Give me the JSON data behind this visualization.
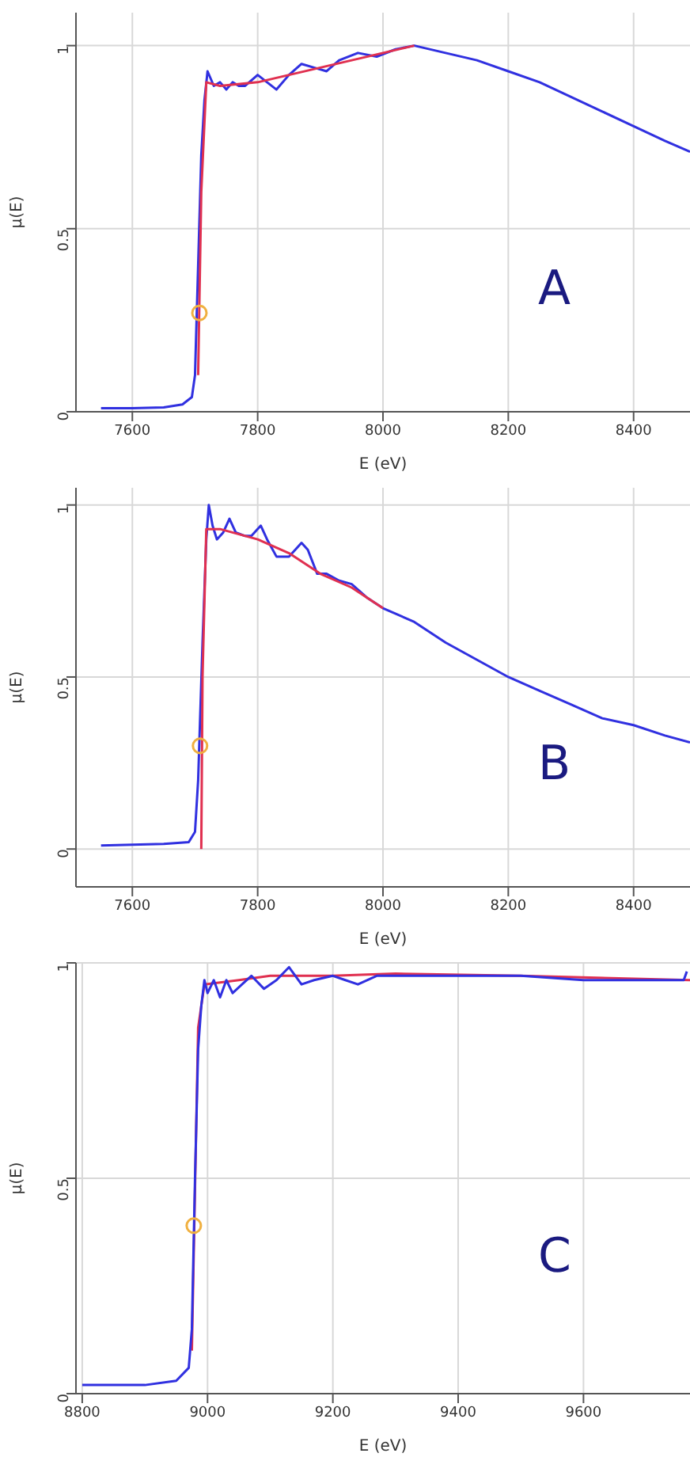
{
  "chart_data": [
    {
      "type": "line",
      "xlabel": "E (eV)",
      "ylabel": "μ(E)",
      "annotations": [
        "A"
      ],
      "xlim": [
        7510,
        8490
      ],
      "ylim": [
        0,
        1.09
      ],
      "xticks": [
        7600,
        7800,
        8000,
        8200,
        8400
      ],
      "yticks": [
        0,
        0.5,
        1
      ],
      "grid": true,
      "marker": "none",
      "line_style": "solid",
      "series": [
        {
          "color": "#3030e0",
          "x": [
            7550,
            7600,
            7650,
            7680,
            7695,
            7700,
            7705,
            7710,
            7715,
            7720,
            7725,
            7730,
            7740,
            7750,
            7760,
            7770,
            7780,
            7800,
            7815,
            7830,
            7850,
            7870,
            7890,
            7910,
            7930,
            7960,
            7990,
            8020,
            8050,
            8100,
            8150,
            8200,
            8250,
            8300,
            8350,
            8400,
            8450,
            8490
          ],
          "values": [
            0.01,
            0.01,
            0.012,
            0.02,
            0.04,
            0.1,
            0.4,
            0.7,
            0.85,
            0.93,
            0.91,
            0.89,
            0.9,
            0.88,
            0.9,
            0.89,
            0.89,
            0.92,
            0.9,
            0.88,
            0.92,
            0.95,
            0.94,
            0.93,
            0.96,
            0.98,
            0.97,
            0.99,
            1.0,
            0.98,
            0.96,
            0.93,
            0.9,
            0.86,
            0.82,
            0.78,
            0.74,
            0.71
          ]
        },
        {
          "color": "#e03050",
          "x": [
            7705,
            7710,
            7718,
            7740,
            7800,
            7900,
            8000,
            8050
          ],
          "values": [
            0.1,
            0.6,
            0.9,
            0.89,
            0.9,
            0.94,
            0.98,
            1.0
          ]
        },
        {
          "type": "scatter",
          "color": "#f0b040",
          "marker": "circle",
          "x": [
            7707
          ],
          "values": [
            0.27
          ]
        }
      ]
    },
    {
      "type": "line",
      "xlabel": "E (eV)",
      "ylabel": "μ(E)",
      "annotations": [
        "B"
      ],
      "xlim": [
        7510,
        8490
      ],
      "ylim": [
        -0.11,
        1.05
      ],
      "xticks": [
        7600,
        7800,
        8000,
        8200,
        8400
      ],
      "yticks": [
        0,
        0.5,
        1
      ],
      "grid": true,
      "marker": "none",
      "line_style": "solid",
      "series": [
        {
          "color": "#3030e0",
          "x": [
            7550,
            7650,
            7690,
            7700,
            7705,
            7712,
            7718,
            7722,
            7728,
            7735,
            7745,
            7755,
            7765,
            7780,
            7790,
            7805,
            7815,
            7830,
            7850,
            7870,
            7880,
            7895,
            7910,
            7930,
            7950,
            7975,
            8000,
            8050,
            8100,
            8150,
            8200,
            8250,
            8300,
            8350,
            8400,
            8450,
            8490
          ],
          "values": [
            0.01,
            0.015,
            0.02,
            0.05,
            0.2,
            0.6,
            0.9,
            1.0,
            0.94,
            0.9,
            0.92,
            0.96,
            0.92,
            0.91,
            0.91,
            0.94,
            0.9,
            0.85,
            0.85,
            0.89,
            0.87,
            0.8,
            0.8,
            0.78,
            0.77,
            0.73,
            0.7,
            0.66,
            0.6,
            0.55,
            0.5,
            0.46,
            0.42,
            0.38,
            0.36,
            0.33,
            0.31
          ]
        },
        {
          "color": "#e03050",
          "x": [
            7710,
            7712,
            7718,
            7740,
            7800,
            7850,
            7900,
            7950,
            8000
          ],
          "values": [
            0.0,
            0.5,
            0.93,
            0.93,
            0.9,
            0.86,
            0.8,
            0.76,
            0.7
          ]
        },
        {
          "type": "scatter",
          "color": "#f0b040",
          "marker": "circle",
          "x": [
            7708
          ],
          "values": [
            0.3
          ]
        }
      ]
    },
    {
      "type": "line",
      "xlabel": "E (eV)",
      "ylabel": "μ(E)",
      "annotations": [
        "C"
      ],
      "xlim": [
        8790,
        9770
      ],
      "ylim": [
        0,
        1
      ],
      "xticks": [
        8800,
        9000,
        9200,
        9400,
        9600
      ],
      "yticks": [
        0,
        0.5,
        1
      ],
      "grid": true,
      "marker": "none",
      "line_style": "solid",
      "series": [
        {
          "color": "#e03050",
          "x": [
            8975,
            8985,
            8995,
            9050,
            9100,
            9200,
            9300,
            9500,
            9770
          ],
          "values": [
            0.1,
            0.85,
            0.95,
            0.96,
            0.97,
            0.97,
            0.975,
            0.97,
            0.96
          ]
        },
        {
          "color": "#3030e0",
          "x": [
            8800,
            8900,
            8950,
            8970,
            8975,
            8980,
            8985,
            8990,
            8995,
            9000,
            9010,
            9020,
            9030,
            9040,
            9055,
            9070,
            9090,
            9110,
            9130,
            9150,
            9170,
            9200,
            9220,
            9240,
            9270,
            9300,
            9400,
            9500,
            9600,
            9700,
            9760,
            9765
          ],
          "values": [
            0.02,
            0.02,
            0.03,
            0.06,
            0.15,
            0.5,
            0.8,
            0.9,
            0.96,
            0.93,
            0.96,
            0.92,
            0.96,
            0.93,
            0.95,
            0.97,
            0.94,
            0.96,
            0.99,
            0.95,
            0.96,
            0.97,
            0.96,
            0.95,
            0.97,
            0.97,
            0.97,
            0.97,
            0.96,
            0.96,
            0.96,
            0.98
          ]
        },
        {
          "type": "scatter",
          "color": "#f0b040",
          "marker": "circle",
          "x": [
            8978
          ],
          "values": [
            0.39
          ]
        }
      ]
    }
  ]
}
